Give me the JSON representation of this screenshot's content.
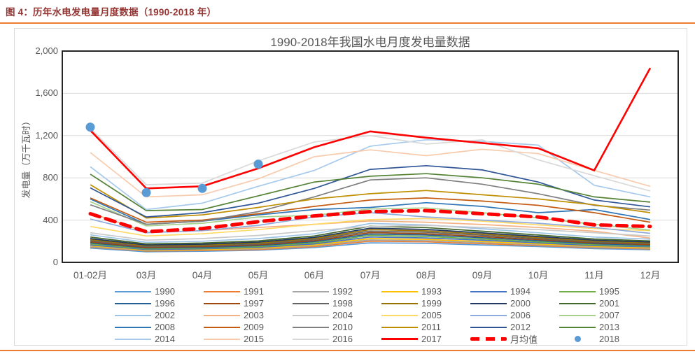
{
  "page": {
    "header_title": "图 4：历年水电发电量月度数据（1990-2018 年）",
    "header_color": "#943634",
    "accent_color": "#ED7D31"
  },
  "chart_data": {
    "type": "line",
    "title": "1990-2018年我国水电月度发电量数据",
    "xlabel": "",
    "ylabel": "发电量（万千瓦时）",
    "ylim": [
      0,
      2000
    ],
    "y_ticks": [
      {
        "label": "2,000",
        "value": 2000
      },
      {
        "label": "1,600",
        "value": 1600
      },
      {
        "label": "1,200",
        "value": 1200
      },
      {
        "label": "800",
        "value": 800
      },
      {
        "label": "400",
        "value": 400
      },
      {
        "label": "0",
        "value": 0
      }
    ],
    "gridline_values": [
      400,
      800,
      1200,
      1600
    ],
    "grid": "horizontal",
    "legend_position": "bottom",
    "categories": [
      "01-02月",
      "03月",
      "04月",
      "05月",
      "06月",
      "07月",
      "08月",
      "09月",
      "10月",
      "11月",
      "12月"
    ],
    "series": [
      {
        "name": "1990",
        "color": "#5B9BD5",
        "values": [
          135,
          100,
          105,
          115,
          140,
          185,
          180,
          165,
          150,
          130,
          120
        ]
      },
      {
        "name": "1991",
        "color": "#ED7D31",
        "values": [
          145,
          107,
          112,
          122,
          150,
          200,
          194,
          177,
          159,
          139,
          127
        ]
      },
      {
        "name": "1992",
        "color": "#A5A5A5",
        "values": [
          150,
          112,
          118,
          128,
          158,
          212,
          205,
          187,
          167,
          145,
          133
        ]
      },
      {
        "name": "1993",
        "color": "#FFC000",
        "values": [
          157,
          116,
          122,
          134,
          165,
          225,
          217,
          197,
          175,
          151,
          139
        ]
      },
      {
        "name": "1994",
        "color": "#4472C4",
        "values": [
          165,
          122,
          128,
          142,
          175,
          240,
          231,
          209,
          185,
          159,
          147
        ]
      },
      {
        "name": "1995",
        "color": "#70AD47",
        "values": [
          175,
          128,
          135,
          150,
          185,
          255,
          245,
          221,
          195,
          167,
          154
        ]
      },
      {
        "name": "1996",
        "color": "#255E91",
        "values": [
          185,
          136,
          142,
          158,
          196,
          268,
          259,
          233,
          205,
          176,
          161
        ]
      },
      {
        "name": "1997",
        "color": "#9E480E",
        "values": [
          195,
          142,
          150,
          166,
          205,
          282,
          271,
          244,
          215,
          184,
          169
        ]
      },
      {
        "name": "1998",
        "color": "#636363",
        "values": [
          205,
          150,
          158,
          175,
          216,
          296,
          285,
          256,
          225,
          193,
          177
        ]
      },
      {
        "name": "1999",
        "color": "#997300",
        "values": [
          215,
          158,
          165,
          183,
          226,
          310,
          298,
          267,
          235,
          201,
          185
        ]
      },
      {
        "name": "2000",
        "color": "#203864",
        "values": [
          225,
          165,
          172,
          192,
          236,
          324,
          311,
          279,
          245,
          210,
          193
        ]
      },
      {
        "name": "2001",
        "color": "#43682B",
        "values": [
          240,
          175,
          183,
          203,
          250,
          342,
          329,
          295,
          259,
          221,
          203
        ]
      },
      {
        "name": "2002",
        "color": "#9DC3E6",
        "values": [
          260,
          190,
          200,
          225,
          270,
          368,
          354,
          318,
          280,
          240,
          220
        ]
      },
      {
        "name": "2003",
        "color": "#F4B183",
        "values": [
          470,
          285,
          300,
          330,
          360,
          392,
          380,
          358,
          330,
          295,
          230
        ]
      },
      {
        "name": "2004",
        "color": "#C9C9C9",
        "values": [
          280,
          210,
          225,
          255,
          300,
          340,
          350,
          330,
          310,
          280,
          250
        ]
      },
      {
        "name": "2005",
        "color": "#FFD966",
        "values": [
          340,
          250,
          270,
          310,
          360,
          405,
          415,
          390,
          355,
          320,
          300
        ]
      },
      {
        "name": "2006",
        "color": "#8FAADC",
        "values": [
          410,
          280,
          300,
          350,
          430,
          470,
          430,
          400,
          370,
          330,
          275
        ]
      },
      {
        "name": "2007",
        "color": "#A9D18E",
        "values": [
          575,
          345,
          370,
          430,
          445,
          505,
          515,
          470,
          420,
          360,
          305
        ]
      },
      {
        "name": "2008",
        "color": "#2E75B6",
        "values": [
          600,
          360,
          390,
          450,
          500,
          520,
          565,
          530,
          470,
          500,
          405
        ]
      },
      {
        "name": "2009",
        "color": "#C55A11",
        "values": [
          610,
          380,
          400,
          460,
          530,
          590,
          610,
          580,
          540,
          470,
          380
        ]
      },
      {
        "name": "2010",
        "color": "#7F7F7F",
        "values": [
          545,
          360,
          390,
          480,
          620,
          780,
          800,
          740,
          650,
          540,
          495
        ]
      },
      {
        "name": "2011",
        "color": "#BF8F00",
        "values": [
          735,
          420,
          450,
          520,
          600,
          650,
          680,
          640,
          600,
          545,
          470
        ]
      },
      {
        "name": "2012",
        "color": "#2F5597",
        "values": [
          705,
          430,
          470,
          560,
          700,
          880,
          915,
          875,
          760,
          590,
          525
        ]
      },
      {
        "name": "2013",
        "color": "#548235",
        "values": [
          835,
          490,
          500,
          630,
          760,
          815,
          840,
          800,
          740,
          620,
          570
        ]
      },
      {
        "name": "2014",
        "color": "#A6C9EC",
        "values": [
          905,
          500,
          560,
          720,
          870,
          1100,
          1160,
          1145,
          1110,
          730,
          620
        ]
      },
      {
        "name": "2015",
        "color": "#F8CBAD",
        "values": [
          1040,
          620,
          640,
          790,
          1000,
          1065,
          1010,
          1070,
          1030,
          870,
          720
        ]
      },
      {
        "name": "2016",
        "color": "#D9D9D9",
        "values": [
          1270,
          735,
          750,
          960,
          1140,
          1200,
          1120,
          1160,
          970,
          820,
          675
        ]
      },
      {
        "name": "2017",
        "color": "#FF0000",
        "width": 2.6,
        "values": [
          1250,
          700,
          720,
          890,
          1090,
          1240,
          1180,
          1130,
          1080,
          870,
          1840
        ]
      },
      {
        "name": "月均值",
        "color": "#FF0000",
        "width": 5,
        "dash": "14 9",
        "values": [
          460,
          290,
          320,
          385,
          440,
          480,
          490,
          460,
          430,
          355,
          340
        ]
      }
    ],
    "scatter": {
      "name": "2018",
      "color": "#5B9BD5",
      "radius": 6.5,
      "values": [
        1280,
        660,
        700,
        930
      ]
    }
  }
}
